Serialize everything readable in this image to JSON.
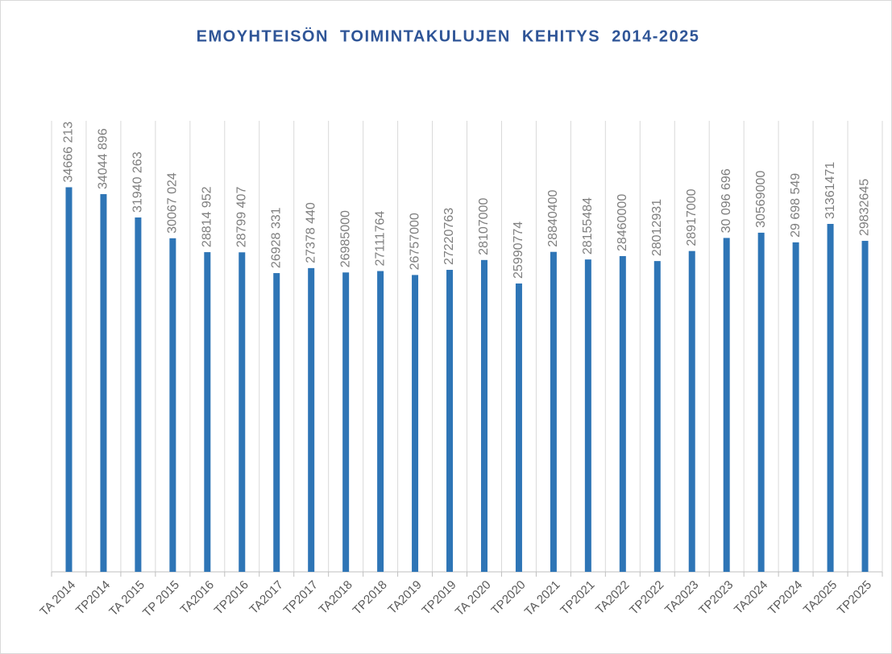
{
  "chart_data": {
    "type": "bar",
    "title": "EMOYHTEISÖN  TOIMINTAKULUJEN  KEHITYS  2014-2025",
    "categories": [
      "TA 2014",
      "TP2014",
      "TA 2015",
      "TP 2015",
      "TA2016",
      "TP2016",
      "TA2017",
      "TP2017",
      "TA2018",
      "TP2018",
      "TA2019",
      "TP2019",
      "TA 2020",
      "TP2020",
      "TA 2021",
      "TP2021",
      "TA2022",
      "TP2022",
      "TA2023",
      "TP2023",
      "TA2024",
      "TP2024",
      "TA2025",
      "TP2025"
    ],
    "values": [
      34666213,
      34044896,
      31940263,
      30067024,
      28814952,
      28799407,
      26928331,
      27378440,
      26985000,
      27111764,
      26757000,
      27220763,
      28107000,
      25990774,
      28840400,
      28155484,
      28460000,
      28012931,
      28917000,
      30096696,
      30569000,
      29698549,
      31361471,
      29832645
    ],
    "value_labels": [
      "34666 213",
      "34044 896",
      "31940 263",
      "30067 024",
      "28814 952",
      "28799 407",
      "26928 331",
      "27378 440",
      "26985000",
      "27111764",
      "26757000",
      "27220763",
      "28107000",
      "25990774",
      "28840400",
      "28155484",
      "28460000",
      "28012931",
      "28917000",
      "30 096 696",
      "30569000",
      "29 698 549",
      "31361471",
      "29832645"
    ],
    "color": "#2e75b6",
    "ylim": [
      0,
      40000000
    ]
  }
}
